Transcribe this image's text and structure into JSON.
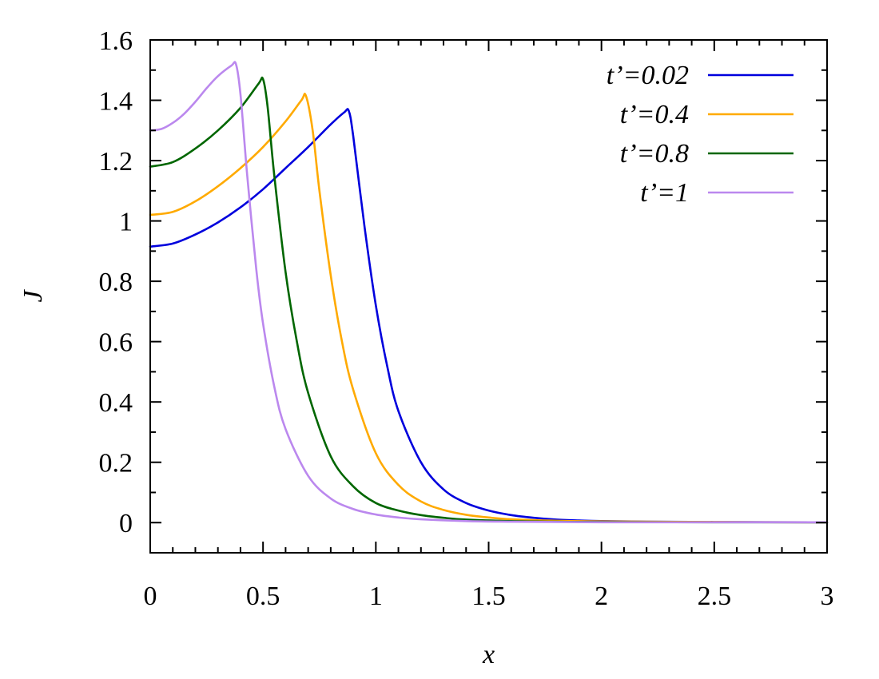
{
  "chart_data": {
    "type": "line",
    "title": "",
    "xlabel": "x",
    "ylabel": "J",
    "xlim": [
      0,
      3
    ],
    "ylim": [
      -0.1,
      1.6
    ],
    "xticks": [
      0,
      0.5,
      1,
      1.5,
      2,
      2.5,
      3
    ],
    "xtick_labels": [
      "0",
      "0.5",
      "1",
      "1.5",
      "2",
      "2.5",
      "3"
    ],
    "yticks": [
      0,
      0.2,
      0.4,
      0.6,
      0.8,
      1,
      1.2,
      1.4,
      1.6
    ],
    "ytick_labels": [
      "0",
      "0.2",
      "0.4",
      "0.6",
      "0.8",
      "1",
      "1.2",
      "1.4",
      "1.6"
    ],
    "x_minor_step": 0.1,
    "y_minor_step": 0.1,
    "grid": false,
    "legend_position": "top-right",
    "series": [
      {
        "name": "t’=0.02",
        "color": "#0000dd",
        "x": [
          0,
          0.1,
          0.2,
          0.3,
          0.4,
          0.5,
          0.6,
          0.7,
          0.8,
          0.86,
          0.88,
          0.9,
          0.95,
          1.0,
          1.05,
          1.1,
          1.2,
          1.3,
          1.4,
          1.5,
          1.6,
          1.7,
          1.8,
          1.9,
          2.0,
          2.2,
          2.5,
          3.0
        ],
        "y": [
          0.915,
          0.925,
          0.955,
          0.995,
          1.045,
          1.105,
          1.175,
          1.245,
          1.32,
          1.36,
          1.365,
          1.28,
          0.98,
          0.72,
          0.52,
          0.37,
          0.2,
          0.11,
          0.065,
          0.04,
          0.025,
          0.016,
          0.01,
          0.007,
          0.005,
          0.003,
          0.002,
          0.001
        ]
      },
      {
        "name": "t’=0.4",
        "color": "#ffaa00",
        "x": [
          0,
          0.1,
          0.2,
          0.3,
          0.4,
          0.5,
          0.6,
          0.67,
          0.69,
          0.72,
          0.75,
          0.8,
          0.85,
          0.9,
          1.0,
          1.1,
          1.2,
          1.3,
          1.4,
          1.5,
          1.6,
          1.8,
          2.0,
          2.5,
          3.0
        ],
        "y": [
          1.02,
          1.03,
          1.065,
          1.115,
          1.175,
          1.245,
          1.33,
          1.4,
          1.415,
          1.3,
          1.1,
          0.82,
          0.6,
          0.44,
          0.23,
          0.125,
          0.07,
          0.042,
          0.026,
          0.017,
          0.011,
          0.006,
          0.004,
          0.002,
          0.001
        ]
      },
      {
        "name": "t’=0.8",
        "color": "#006600",
        "x": [
          0,
          0.1,
          0.2,
          0.3,
          0.4,
          0.48,
          0.5,
          0.52,
          0.55,
          0.6,
          0.65,
          0.7,
          0.8,
          0.9,
          1.0,
          1.1,
          1.2,
          1.3,
          1.4,
          1.6,
          1.8,
          2.0,
          2.5,
          3.0
        ],
        "y": [
          1.18,
          1.195,
          1.24,
          1.3,
          1.375,
          1.455,
          1.47,
          1.38,
          1.15,
          0.83,
          0.6,
          0.43,
          0.22,
          0.12,
          0.065,
          0.04,
          0.025,
          0.016,
          0.01,
          0.005,
          0.003,
          0.002,
          0.001,
          0.001
        ]
      },
      {
        "name": "t’=1",
        "color": "#bb88ee",
        "x": [
          0,
          0.05,
          0.1,
          0.15,
          0.2,
          0.25,
          0.3,
          0.36,
          0.38,
          0.4,
          0.43,
          0.47,
          0.5,
          0.55,
          0.6,
          0.7,
          0.8,
          0.9,
          1.0,
          1.1,
          1.2,
          1.4,
          1.6,
          2.0,
          2.5,
          3.0
        ],
        "y": [
          1.3,
          1.305,
          1.325,
          1.355,
          1.395,
          1.44,
          1.48,
          1.515,
          1.52,
          1.42,
          1.15,
          0.84,
          0.66,
          0.45,
          0.31,
          0.155,
          0.08,
          0.045,
          0.027,
          0.017,
          0.011,
          0.005,
          0.003,
          0.001,
          0.001,
          0.001
        ]
      }
    ]
  }
}
